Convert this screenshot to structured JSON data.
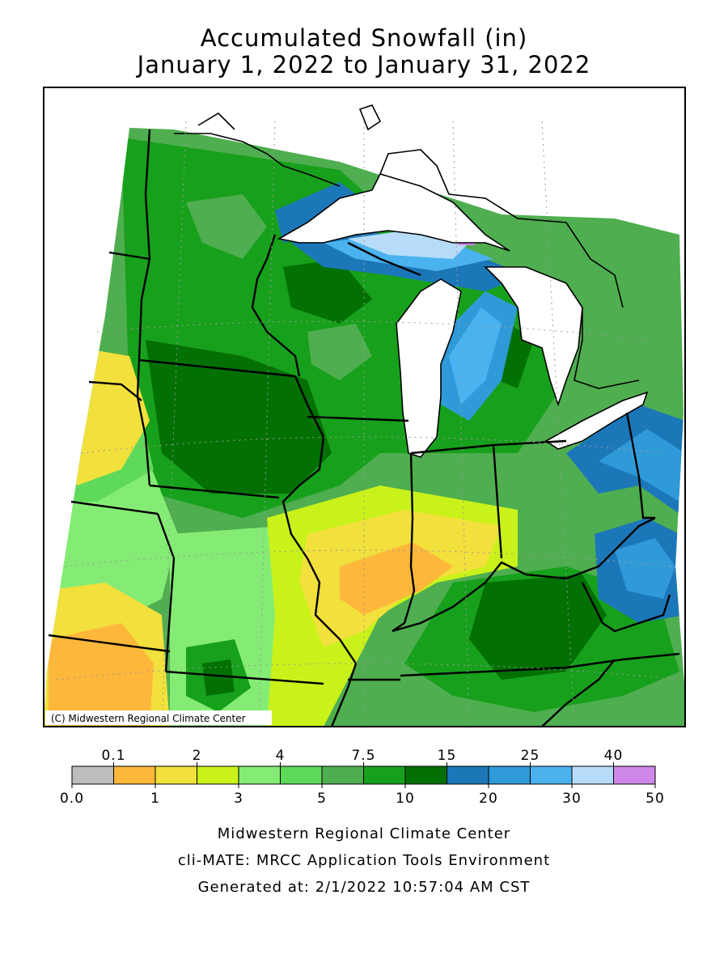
{
  "title_line1": "Accumulated Snowfall (in)",
  "title_line2": "January 1, 2022 to January 31, 2022",
  "copyright": "(C) Midwestern Regional Climate Center",
  "legend": {
    "upper_labels": [
      "0.1",
      "2",
      "4",
      "7.5",
      "15",
      "25",
      "40"
    ],
    "lower_labels": [
      "0.0",
      "1",
      "3",
      "5",
      "10",
      "20",
      "30",
      "50"
    ],
    "colors": [
      "#bdbdbd",
      "#fdb73a",
      "#f2e03c",
      "#c9f21a",
      "#84ec74",
      "#5fd95a",
      "#4fae4f",
      "#17a01c",
      "#037003",
      "#1c77b9",
      "#2f9ad8",
      "#4ab2ef",
      "#b6dcf9",
      "#cf88ea"
    ]
  },
  "footer": {
    "line1": "Midwestern Regional Climate Center",
    "line2": "cli-MATE: MRCC Application Tools Environment",
    "line3": "Generated at: 2/1/2022 10:57:04 AM CST"
  }
}
